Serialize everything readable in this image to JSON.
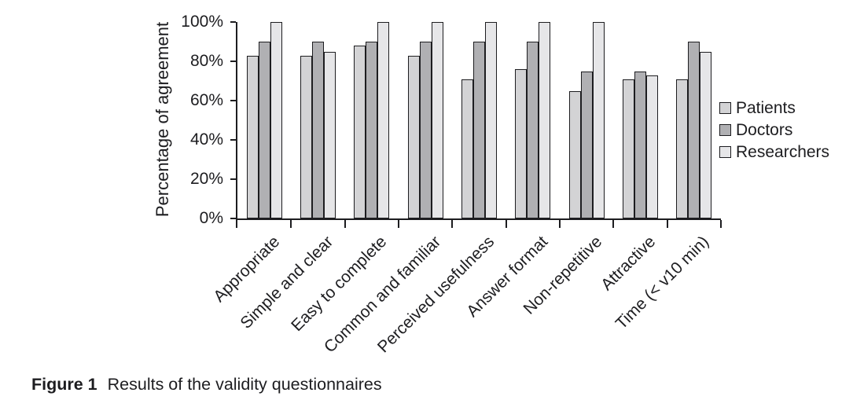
{
  "chart_data": {
    "type": "bar",
    "title": "",
    "xlabel": "",
    "ylabel": "Percentage of agreement",
    "ylim": [
      0,
      100
    ],
    "yticks": [
      0,
      20,
      40,
      60,
      80,
      100
    ],
    "ytick_labels": [
      "0%",
      "20%",
      "40%",
      "60%",
      "80%",
      "100%"
    ],
    "categories": [
      "Appropriate",
      "Simple and clear",
      "Easy to complete",
      "Common and familiar",
      "Perceived usefulness",
      "Answer format",
      "Non-repetitive",
      "Attractive",
      "Time (< v10 min)"
    ],
    "series": [
      {
        "name": "Patients",
        "color": "#d3d3d5",
        "values": [
          83,
          83,
          88,
          83,
          71,
          76,
          65,
          71,
          71
        ]
      },
      {
        "name": "Doctors",
        "color": "#b0b0b3",
        "values": [
          90,
          90,
          90,
          90,
          90,
          90,
          75,
          75,
          90
        ]
      },
      {
        "name": "Researchers",
        "color": "#e6e6e8",
        "values": [
          100,
          85,
          100,
          100,
          100,
          100,
          100,
          73,
          85
        ]
      }
    ],
    "grid": false,
    "legend_position": "right",
    "axis_color": "#1d1d20",
    "background_color": "#ffffff"
  },
  "caption": {
    "label": "Figure 1",
    "text": "Results of the validity questionnaires"
  }
}
